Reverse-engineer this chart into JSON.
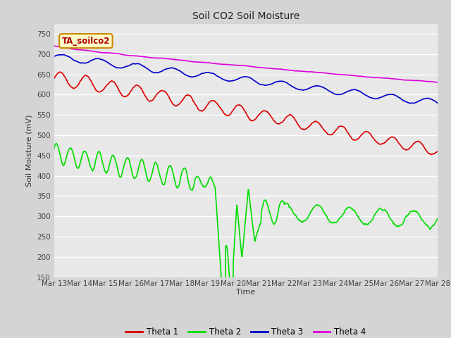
{
  "title": "Soil CO2 Soil Moisture",
  "ylabel": "Soil Moisture (mV)",
  "xlabel": "Time",
  "annotation": "TA_soilco2",
  "ylim": [
    150,
    775
  ],
  "yticks": [
    150,
    200,
    250,
    300,
    350,
    400,
    450,
    500,
    550,
    600,
    650,
    700,
    750
  ],
  "xtick_labels": [
    "Mar 13",
    "Mar 14",
    "Mar 15",
    "Mar 16",
    "Mar 17",
    "Mar 18",
    "Mar 19",
    "Mar 20",
    "Mar 21",
    "Mar 22",
    "Mar 23",
    "Mar 24",
    "Mar 25",
    "Mar 26",
    "Mar 27",
    "Mar 28"
  ],
  "colors": {
    "theta1": "#dd0000",
    "theta2": "#00dd00",
    "theta3": "#0000cc",
    "theta4": "#dd00dd"
  },
  "background_color": "#d4d4d4",
  "plot_bg_color": "#e8e8e8",
  "legend_labels": [
    "Theta 1",
    "Theta 2",
    "Theta 3",
    "Theta 4"
  ],
  "annotation_bg": "#ffffcc",
  "annotation_border": "#cc8800",
  "figwidth": 6.4,
  "figheight": 4.8,
  "dpi": 100
}
